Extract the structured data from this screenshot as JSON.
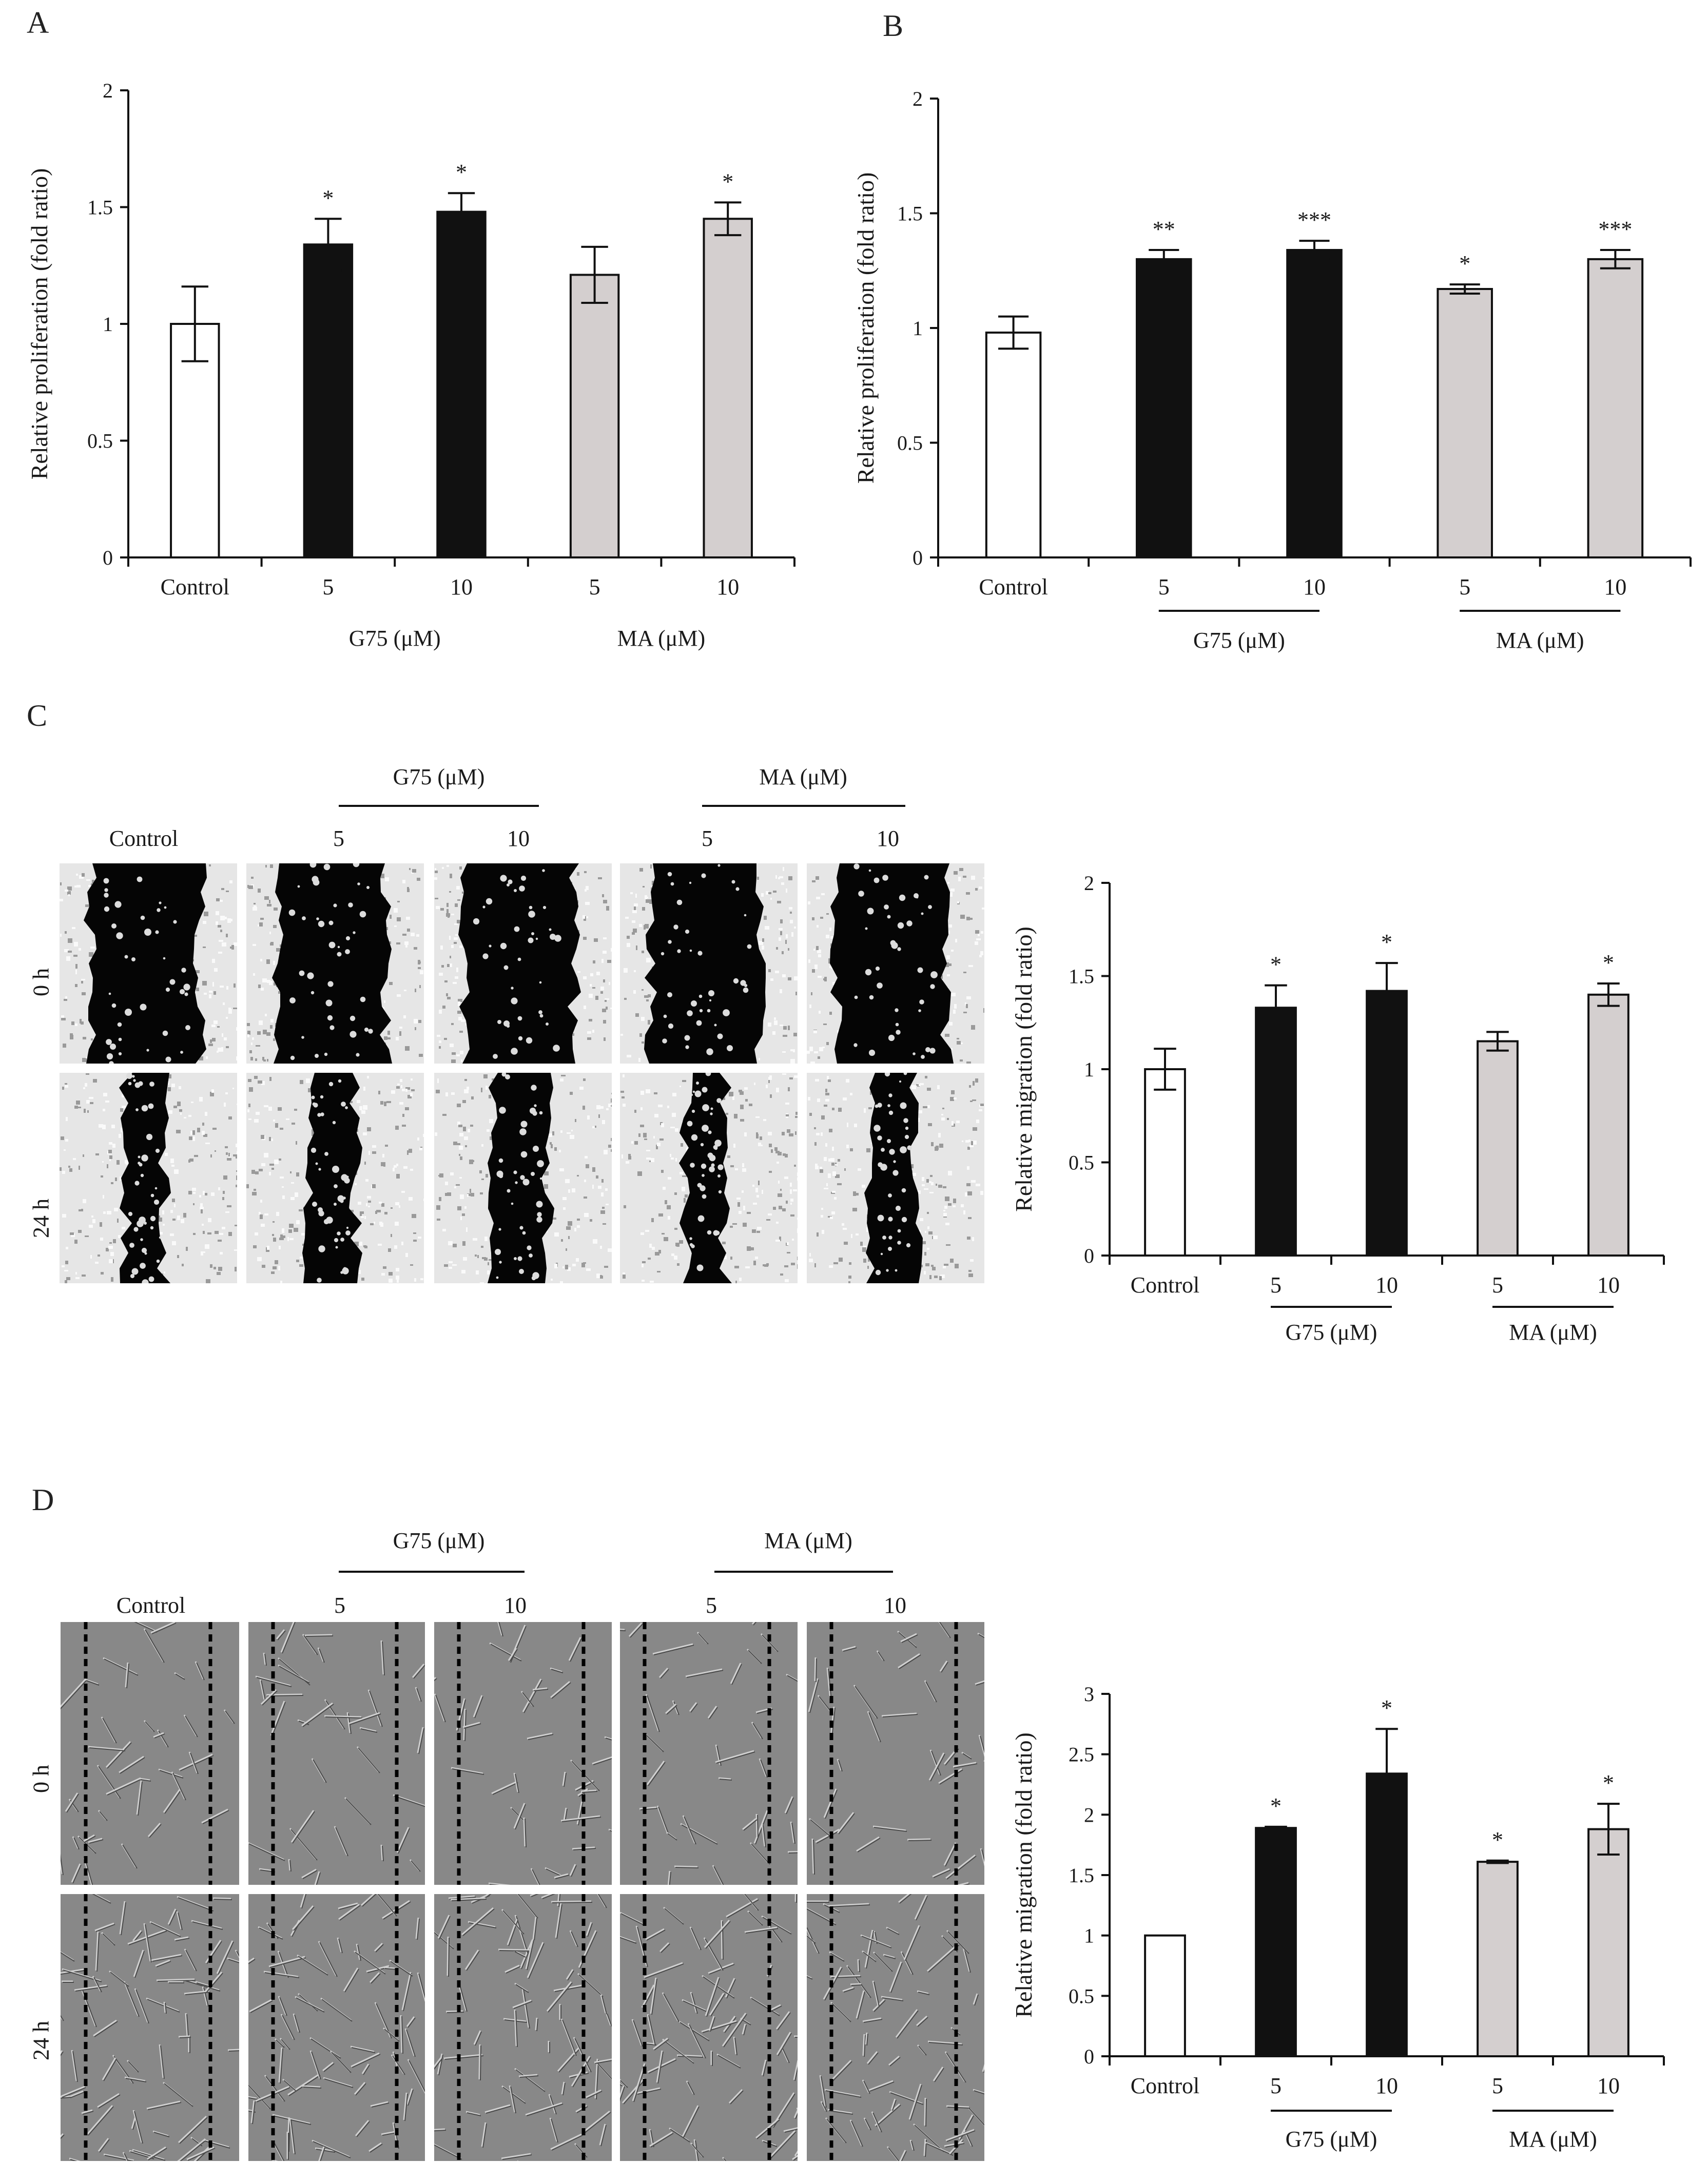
{
  "panels": {
    "A": {
      "letter": "A"
    },
    "B": {
      "letter": "B"
    },
    "C": {
      "letter": "C"
    },
    "D": {
      "letter": "D"
    }
  },
  "colors": {
    "control": "#ffffff",
    "g75": "#111111",
    "ma": "#d4cfcf",
    "stroke": "#111111",
    "sig_gray": "#777777",
    "sig_black": "#222222"
  },
  "microscopy": {
    "C": {
      "col_headers": [
        "Control",
        "5",
        "10",
        "5",
        "10"
      ],
      "group_headers": [
        "G75 (μM)",
        "MA (μM)"
      ],
      "row_labels": [
        "0 h",
        "24 h"
      ],
      "style": "binary"
    },
    "D": {
      "col_headers": [
        "Control",
        "5",
        "10",
        "5",
        "10"
      ],
      "group_headers": [
        "G75 (μM)",
        "MA (μM)"
      ],
      "row_labels": [
        "0 h",
        "24 h"
      ],
      "style": "phase"
    }
  },
  "chart_data": [
    {
      "panel": "A",
      "type": "bar",
      "categories": [
        "Control",
        "5",
        "10",
        "5",
        "10"
      ],
      "groups": [
        "",
        "G75",
        "G75",
        "MA",
        "MA"
      ],
      "group_labels": [
        "G75 (μM)",
        "MA (μM)"
      ],
      "values": [
        1.0,
        1.34,
        1.48,
        1.21,
        1.45
      ],
      "errors": [
        0.16,
        0.11,
        0.08,
        0.12,
        0.07
      ],
      "significance": [
        "",
        "*",
        "*",
        "",
        "*"
      ],
      "ylabel": "Relative proliferation (fold ratio)",
      "ylim": [
        0,
        2
      ],
      "yticks": [
        0,
        0.5,
        1,
        1.5,
        2
      ],
      "ytick_labels": [
        "0",
        "0.5",
        "1",
        "1.5",
        "2"
      ],
      "group_lines": false,
      "sig_color": "gray"
    },
    {
      "panel": "B",
      "type": "bar",
      "categories": [
        "Control",
        "5",
        "10",
        "5",
        "10"
      ],
      "groups": [
        "",
        "G75",
        "G75",
        "MA",
        "MA"
      ],
      "group_labels": [
        "G75 (μM)",
        "MA (μM)"
      ],
      "values": [
        0.98,
        1.3,
        1.34,
        1.17,
        1.3
      ],
      "errors": [
        0.07,
        0.04,
        0.04,
        0.02,
        0.04
      ],
      "significance": [
        "",
        "**",
        "***",
        "*",
        "***"
      ],
      "ylabel": "Relative proliferation (fold ratio)",
      "ylim": [
        0,
        2
      ],
      "yticks": [
        0,
        0.5,
        1,
        1.5,
        2
      ],
      "ytick_labels": [
        "0",
        "0.5",
        "1",
        "1.5",
        "2"
      ],
      "group_lines": true,
      "sig_color": "black"
    },
    {
      "panel": "C",
      "type": "bar",
      "categories": [
        "Control",
        "5",
        "10",
        "5",
        "10"
      ],
      "groups": [
        "",
        "G75",
        "G75",
        "MA",
        "MA"
      ],
      "group_labels": [
        "G75 (μM)",
        "MA (μM)"
      ],
      "values": [
        1.0,
        1.33,
        1.42,
        1.15,
        1.4
      ],
      "errors": [
        0.11,
        0.12,
        0.15,
        0.05,
        0.06
      ],
      "significance": [
        "",
        "*",
        "*",
        "",
        "*"
      ],
      "ylabel": "Relative migration (fold ratio)",
      "ylim": [
        0,
        2
      ],
      "yticks": [
        0,
        0.5,
        1,
        1.5,
        2
      ],
      "ytick_labels": [
        "0",
        "0.5",
        "1",
        "1.5",
        "2"
      ],
      "group_lines": true,
      "sig_color": "gray"
    },
    {
      "panel": "D",
      "type": "bar",
      "categories": [
        "Control",
        "5",
        "10",
        "5",
        "10"
      ],
      "groups": [
        "",
        "G75",
        "G75",
        "MA",
        "MA"
      ],
      "group_labels": [
        "G75 (μM)",
        "MA (μM)"
      ],
      "values": [
        1.0,
        1.89,
        2.34,
        1.61,
        1.88
      ],
      "errors": [
        0,
        0.01,
        0.37,
        0.01,
        0.21
      ],
      "significance": [
        "",
        "*",
        "*",
        "*",
        "*"
      ],
      "ylabel": "Relative migration (fold ratio)",
      "ylim": [
        0,
        3
      ],
      "yticks": [
        0,
        0.5,
        1,
        1.5,
        2,
        2.5,
        3
      ],
      "ytick_labels": [
        "0",
        "0.5",
        "1",
        "1.5",
        "2",
        "2.5",
        "3"
      ],
      "group_lines": true,
      "sig_color": "black"
    }
  ]
}
